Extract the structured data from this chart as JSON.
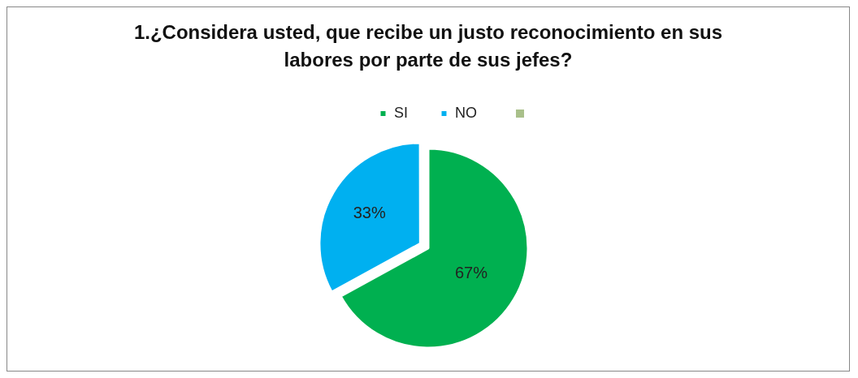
{
  "chart_data": {
    "type": "pie",
    "title": "1.¿Considera usted, que recibe un justo reconocimiento en sus labores por parte de sus jefes?",
    "categories": [
      "SI",
      "NO"
    ],
    "values": [
      67,
      33
    ],
    "value_labels": [
      "67%",
      "33%"
    ],
    "colors": [
      "#00b050",
      "#00b0f0"
    ],
    "legend": "top"
  }
}
